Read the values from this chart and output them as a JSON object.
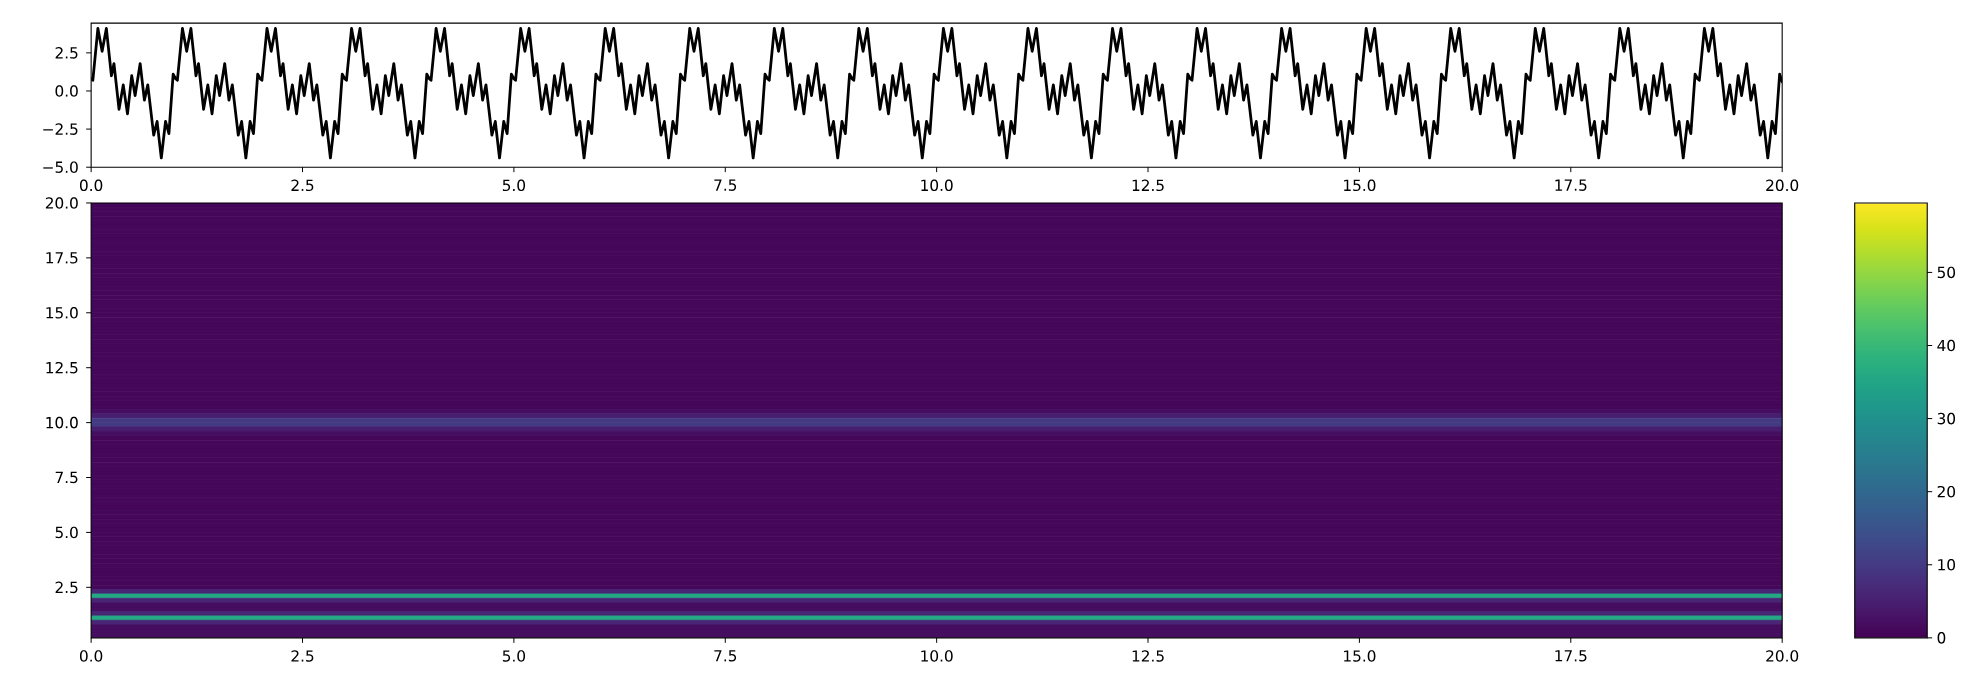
{
  "chart_data": [
    {
      "type": "line",
      "color": "#000000",
      "line_style": "solid",
      "x": [
        0,
        0.02,
        0.08,
        0.13,
        0.18,
        0.24,
        0.27,
        0.33,
        0.38,
        0.43,
        0.48,
        0.52,
        0.58,
        0.63,
        0.67,
        0.74,
        0.78,
        0.83,
        0.88,
        0.92,
        0.97,
        1,
        1.02,
        1.08,
        1.13,
        1.18,
        1.24,
        1.27,
        1.33,
        1.38,
        1.43,
        1.48,
        1.52,
        1.58,
        1.63,
        1.67,
        1.74,
        1.78,
        1.83,
        1.88,
        1.92,
        1.97,
        2,
        2.02,
        2.08,
        2.13,
        2.18,
        2.24,
        2.27,
        2.33,
        2.38,
        2.43,
        2.48,
        2.52,
        2.58,
        2.63,
        2.67,
        2.74,
        2.78,
        2.83,
        2.88,
        2.92,
        2.97,
        3,
        3.02,
        3.08,
        3.13,
        3.18,
        3.24,
        3.27,
        3.33,
        3.38,
        3.43,
        3.48,
        3.52,
        3.58,
        3.63,
        3.67,
        3.74,
        3.78,
        3.83,
        3.88,
        3.92,
        3.97,
        4,
        4.02,
        4.08,
        4.13,
        4.18,
        4.24,
        4.27,
        4.33,
        4.38,
        4.43,
        4.48,
        4.52,
        4.58,
        4.63,
        4.67,
        4.74,
        4.78,
        4.83,
        4.88,
        4.92,
        4.97,
        5,
        5.02,
        5.08,
        5.13,
        5.18,
        5.24,
        5.27,
        5.33,
        5.38,
        5.43,
        5.48,
        5.52,
        5.58,
        5.63,
        5.67,
        5.74,
        5.78,
        5.83,
        5.88,
        5.92,
        5.97,
        6,
        6.02,
        6.08,
        6.13,
        6.18,
        6.24,
        6.27,
        6.33,
        6.38,
        6.43,
        6.48,
        6.52,
        6.58,
        6.63,
        6.67,
        6.74,
        6.78,
        6.83,
        6.88,
        6.92,
        6.97,
        7,
        7.02,
        7.08,
        7.13,
        7.18,
        7.24,
        7.27,
        7.33,
        7.38,
        7.43,
        7.48,
        7.52,
        7.58,
        7.63,
        7.67,
        7.74,
        7.78,
        7.83,
        7.88,
        7.92,
        7.97,
        8,
        8.02,
        8.08,
        8.13,
        8.18,
        8.24,
        8.27,
        8.33,
        8.38,
        8.43,
        8.48,
        8.52,
        8.58,
        8.63,
        8.67,
        8.74,
        8.78,
        8.83,
        8.88,
        8.92,
        8.97,
        9,
        9.02,
        9.08,
        9.13,
        9.18,
        9.24,
        9.27,
        9.33,
        9.38,
        9.43,
        9.48,
        9.52,
        9.58,
        9.63,
        9.67,
        9.74,
        9.78,
        9.83,
        9.88,
        9.92,
        9.97,
        10,
        10.02,
        10.08,
        10.13,
        10.18,
        10.24,
        10.27,
        10.33,
        10.38,
        10.43,
        10.48,
        10.52,
        10.58,
        10.63,
        10.67,
        10.74,
        10.78,
        10.83,
        10.88,
        10.92,
        10.97,
        11,
        11.02,
        11.08,
        11.13,
        11.18,
        11.24,
        11.27,
        11.33,
        11.38,
        11.43,
        11.48,
        11.52,
        11.58,
        11.63,
        11.67,
        11.74,
        11.78,
        11.83,
        11.88,
        11.92,
        11.97,
        12,
        12.02,
        12.08,
        12.13,
        12.18,
        12.24,
        12.27,
        12.33,
        12.38,
        12.43,
        12.48,
        12.52,
        12.58,
        12.63,
        12.67,
        12.74,
        12.78,
        12.83,
        12.88,
        12.92,
        12.97,
        13,
        13.02,
        13.08,
        13.13,
        13.18,
        13.24,
        13.27,
        13.33,
        13.38,
        13.43,
        13.48,
        13.52,
        13.58,
        13.63,
        13.67,
        13.74,
        13.78,
        13.83,
        13.88,
        13.92,
        13.97,
        14,
        14.02,
        14.08,
        14.13,
        14.18,
        14.24,
        14.27,
        14.33,
        14.38,
        14.43,
        14.48,
        14.52,
        14.58,
        14.63,
        14.67,
        14.74,
        14.78,
        14.83,
        14.88,
        14.92,
        14.97,
        15,
        15.02,
        15.08,
        15.13,
        15.18,
        15.24,
        15.27,
        15.33,
        15.38,
        15.43,
        15.48,
        15.52,
        15.58,
        15.63,
        15.67,
        15.74,
        15.78,
        15.83,
        15.88,
        15.92,
        15.97,
        16,
        16.02,
        16.08,
        16.13,
        16.18,
        16.24,
        16.27,
        16.33,
        16.38,
        16.43,
        16.48,
        16.52,
        16.58,
        16.63,
        16.67,
        16.74,
        16.78,
        16.83,
        16.88,
        16.92,
        16.97,
        17,
        17.02,
        17.08,
        17.13,
        17.18,
        17.24,
        17.27,
        17.33,
        17.38,
        17.43,
        17.48,
        17.52,
        17.58,
        17.63,
        17.67,
        17.74,
        17.78,
        17.83,
        17.88,
        17.92,
        17.97,
        18,
        18.02,
        18.08,
        18.13,
        18.18,
        18.24,
        18.27,
        18.33,
        18.38,
        18.43,
        18.48,
        18.52,
        18.58,
        18.63,
        18.67,
        18.74,
        18.78,
        18.83,
        18.88,
        18.92,
        18.97,
        19,
        19.02,
        19.08,
        19.13,
        19.18,
        19.24,
        19.27,
        19.33,
        19.38,
        19.43,
        19.48,
        19.52,
        19.58,
        19.63,
        19.67,
        19.74,
        19.78,
        19.83,
        19.88,
        19.92,
        19.97,
        20
      ],
      "values": [
        0.8,
        0.7,
        4.1,
        2.6,
        4.1,
        1.0,
        1.8,
        -1.2,
        0.4,
        -1.5,
        1.0,
        -0.3,
        1.8,
        -0.6,
        0.4,
        -2.9,
        -2.0,
        -4.4,
        -2.0,
        -2.8,
        1.1,
        0.8,
        0.7,
        4.1,
        2.6,
        4.1,
        1.0,
        1.8,
        -1.2,
        0.4,
        -1.5,
        1.0,
        -0.3,
        1.8,
        -0.6,
        0.4,
        -2.9,
        -2.0,
        -4.4,
        -2.0,
        -2.8,
        1.1,
        0.8,
        0.7,
        4.1,
        2.6,
        4.1,
        1.0,
        1.8,
        -1.2,
        0.4,
        -1.5,
        1.0,
        -0.3,
        1.8,
        -0.6,
        0.4,
        -2.9,
        -2.0,
        -4.4,
        -2.0,
        -2.8,
        1.1,
        0.8,
        0.7,
        4.1,
        2.6,
        4.1,
        1.0,
        1.8,
        -1.2,
        0.4,
        -1.5,
        1.0,
        -0.3,
        1.8,
        -0.6,
        0.4,
        -2.9,
        -2.0,
        -4.4,
        -2.0,
        -2.8,
        1.1,
        0.8,
        0.7,
        4.1,
        2.6,
        4.1,
        1.0,
        1.8,
        -1.2,
        0.4,
        -1.5,
        1.0,
        -0.3,
        1.8,
        -0.6,
        0.4,
        -2.9,
        -2.0,
        -4.4,
        -2.0,
        -2.8,
        1.1,
        0.8,
        0.7,
        4.1,
        2.6,
        4.1,
        1.0,
        1.8,
        -1.2,
        0.4,
        -1.5,
        1.0,
        -0.3,
        1.8,
        -0.6,
        0.4,
        -2.9,
        -2.0,
        -4.4,
        -2.0,
        -2.8,
        1.1,
        0.8,
        0.7,
        4.1,
        2.6,
        4.1,
        1.0,
        1.8,
        -1.2,
        0.4,
        -1.5,
        1.0,
        -0.3,
        1.8,
        -0.6,
        0.4,
        -2.9,
        -2.0,
        -4.4,
        -2.0,
        -2.8,
        1.1,
        0.8,
        0.7,
        4.1,
        2.6,
        4.1,
        1.0,
        1.8,
        -1.2,
        0.4,
        -1.5,
        1.0,
        -0.3,
        1.8,
        -0.6,
        0.4,
        -2.9,
        -2.0,
        -4.4,
        -2.0,
        -2.8,
        1.1,
        0.8,
        0.7,
        4.1,
        2.6,
        4.1,
        1.0,
        1.8,
        -1.2,
        0.4,
        -1.5,
        1.0,
        -0.3,
        1.8,
        -0.6,
        0.4,
        -2.9,
        -2.0,
        -4.4,
        -2.0,
        -2.8,
        1.1,
        0.8,
        0.7,
        4.1,
        2.6,
        4.1,
        1.0,
        1.8,
        -1.2,
        0.4,
        -1.5,
        1.0,
        -0.3,
        1.8,
        -0.6,
        0.4,
        -2.9,
        -2.0,
        -4.4,
        -2.0,
        -2.8,
        1.1,
        0.8,
        0.7,
        4.1,
        2.6,
        4.1,
        1.0,
        1.8,
        -1.2,
        0.4,
        -1.5,
        1.0,
        -0.3,
        1.8,
        -0.6,
        0.4,
        -2.9,
        -2.0,
        -4.4,
        -2.0,
        -2.8,
        1.1,
        0.8,
        0.7,
        4.1,
        2.6,
        4.1,
        1.0,
        1.8,
        -1.2,
        0.4,
        -1.5,
        1.0,
        -0.3,
        1.8,
        -0.6,
        0.4,
        -2.9,
        -2.0,
        -4.4,
        -2.0,
        -2.8,
        1.1,
        0.8,
        0.7,
        4.1,
        2.6,
        4.1,
        1.0,
        1.8,
        -1.2,
        0.4,
        -1.5,
        1.0,
        -0.3,
        1.8,
        -0.6,
        0.4,
        -2.9,
        -2.0,
        -4.4,
        -2.0,
        -2.8,
        1.1,
        0.8,
        0.7,
        4.1,
        2.6,
        4.1,
        1.0,
        1.8,
        -1.2,
        0.4,
        -1.5,
        1.0,
        -0.3,
        1.8,
        -0.6,
        0.4,
        -2.9,
        -2.0,
        -4.4,
        -2.0,
        -2.8,
        1.1,
        0.8,
        0.7,
        4.1,
        2.6,
        4.1,
        1.0,
        1.8,
        -1.2,
        0.4,
        -1.5,
        1.0,
        -0.3,
        1.8,
        -0.6,
        0.4,
        -2.9,
        -2.0,
        -4.4,
        -2.0,
        -2.8,
        1.1,
        0.8,
        0.7,
        4.1,
        2.6,
        4.1,
        1.0,
        1.8,
        -1.2,
        0.4,
        -1.5,
        1.0,
        -0.3,
        1.8,
        -0.6,
        0.4,
        -2.9,
        -2.0,
        -4.4,
        -2.0,
        -2.8,
        1.1,
        0.8,
        0.7,
        4.1,
        2.6,
        4.1,
        1.0,
        1.8,
        -1.2,
        0.4,
        -1.5,
        1.0,
        -0.3,
        1.8,
        -0.6,
        0.4,
        -2.9,
        -2.0,
        -4.4,
        -2.0,
        -2.8,
        1.1,
        0.8,
        0.7,
        4.1,
        2.6,
        4.1,
        1.0,
        1.8,
        -1.2,
        0.4,
        -1.5,
        1.0,
        -0.3,
        1.8,
        -0.6,
        0.4,
        -2.9,
        -2.0,
        -4.4,
        -2.0,
        -2.8,
        1.1,
        0.8,
        0.7,
        4.1,
        2.6,
        4.1,
        1.0,
        1.8,
        -1.2,
        0.4,
        -1.5,
        1.0,
        -0.3,
        1.8,
        -0.6,
        0.4,
        -2.9,
        -2.0,
        -4.4,
        -2.0,
        -2.8,
        1.1,
        0.8,
        0.7,
        4.1,
        2.6,
        4.1,
        1.0,
        1.8,
        -1.2,
        0.4,
        -1.5,
        1.0,
        -0.3,
        1.8,
        -0.6,
        0.4,
        -2.9,
        -2.0,
        -4.4,
        -2.0,
        -2.8,
        1.1,
        0.6
      ],
      "xlim": [
        0,
        20
      ],
      "ylim": [
        -5.0,
        4.45
      ],
      "xticks": [
        {
          "value": 0,
          "label": "0.0"
        },
        {
          "value": 2.5,
          "label": "2.5"
        },
        {
          "value": 5,
          "label": "5.0"
        },
        {
          "value": 7.5,
          "label": "7.5"
        },
        {
          "value": 10,
          "label": "10.0"
        },
        {
          "value": 12.5,
          "label": "12.5"
        },
        {
          "value": 15,
          "label": "15.0"
        },
        {
          "value": 17.5,
          "label": "17.5"
        },
        {
          "value": 20,
          "label": "20.0"
        }
      ],
      "yticks": [
        {
          "value": -5,
          "label": "−5.0"
        },
        {
          "value": -2.5,
          "label": "−2.5"
        },
        {
          "value": 0,
          "label": "0.0"
        },
        {
          "value": 2.5,
          "label": "2.5"
        }
      ]
    },
    {
      "type": "heatmap",
      "xlim": [
        0,
        20
      ],
      "ylim": [
        0.2,
        20.0
      ],
      "xticks": [
        {
          "value": 0,
          "label": "0.0"
        },
        {
          "value": 2.5,
          "label": "2.5"
        },
        {
          "value": 5,
          "label": "5.0"
        },
        {
          "value": 7.5,
          "label": "7.5"
        },
        {
          "value": 10,
          "label": "10.0"
        },
        {
          "value": 12.5,
          "label": "12.5"
        },
        {
          "value": 15,
          "label": "15.0"
        },
        {
          "value": 17.5,
          "label": "17.5"
        },
        {
          "value": 20,
          "label": "20.0"
        }
      ],
      "yticks": [
        {
          "value": 2.5,
          "label": "2.5"
        },
        {
          "value": 5,
          "label": "5.0"
        },
        {
          "value": 7.5,
          "label": "7.5"
        },
        {
          "value": 10,
          "label": "10.0"
        },
        {
          "value": 12.5,
          "label": "12.5"
        },
        {
          "value": 15,
          "label": "15.0"
        },
        {
          "value": 17.5,
          "label": "17.5"
        },
        {
          "value": 20,
          "label": "20.0"
        }
      ],
      "clim": [
        0,
        59.5
      ],
      "cticks": [
        0,
        10,
        20,
        30,
        40,
        50
      ],
      "cells": [
        [
          1
        ],
        [
          1
        ],
        [
          1
        ],
        [
          1
        ],
        [
          1
        ],
        [
          1
        ],
        [
          1
        ],
        [
          1
        ],
        [
          1
        ],
        [
          1
        ],
        [
          1
        ],
        [
          1
        ],
        [
          1
        ],
        [
          1
        ],
        [
          1
        ],
        [
          1
        ],
        [
          1
        ],
        [
          1
        ],
        [
          1
        ],
        [
          1
        ],
        [
          1
        ],
        [
          1
        ],
        [
          1
        ],
        [
          1
        ],
        [
          1
        ],
        [
          1
        ],
        [
          1
        ],
        [
          1
        ],
        [
          1
        ],
        [
          1
        ],
        [
          1
        ],
        [
          1
        ],
        [
          1
        ],
        [
          1
        ],
        [
          1
        ],
        [
          1
        ],
        [
          1
        ],
        [
          1
        ],
        [
          1
        ],
        [
          1
        ],
        [
          1
        ],
        [
          1
        ],
        [
          1
        ],
        [
          1
        ],
        [
          1
        ],
        [
          1
        ],
        [
          1
        ],
        [
          2
        ],
        [
          5
        ],
        [
          10
        ],
        [
          10
        ],
        [
          5
        ],
        [
          2
        ],
        [
          1
        ],
        [
          1
        ],
        [
          1
        ],
        [
          1
        ],
        [
          1
        ],
        [
          1
        ],
        [
          1
        ],
        [
          1
        ],
        [
          1
        ],
        [
          1
        ],
        [
          1
        ],
        [
          1
        ],
        [
          1
        ],
        [
          1
        ],
        [
          1
        ],
        [
          1
        ],
        [
          1
        ],
        [
          1
        ],
        [
          1
        ],
        [
          1
        ],
        [
          1
        ],
        [
          1
        ],
        [
          1
        ],
        [
          1
        ],
        [
          1
        ],
        [
          1
        ],
        [
          1
        ],
        [
          1
        ],
        [
          1
        ],
        [
          1
        ],
        [
          1
        ],
        [
          1
        ],
        [
          1
        ],
        [
          1
        ],
        [
          1
        ],
        [
          6
        ],
        [
          36
        ],
        [
          6
        ],
        [
          2
        ],
        [
          2
        ],
        [
          6
        ],
        [
          36
        ],
        [
          6
        ],
        [
          2
        ],
        [
          2
        ],
        [
          2
        ]
      ]
    }
  ]
}
